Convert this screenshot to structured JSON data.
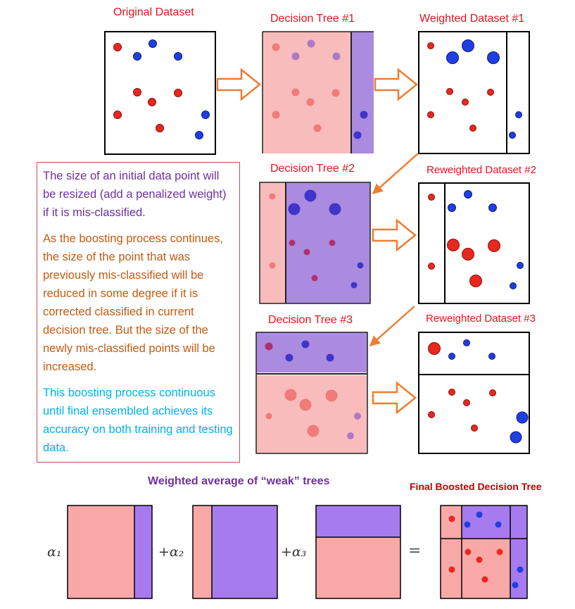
{
  "labels": {
    "original_dataset": "Original Dataset",
    "tree1": "Decision Tree #1",
    "weighted1": "Weighted Dataset #1",
    "tree2": "Decision Tree #2",
    "reweighted2": "Reweighted Dataset #2",
    "tree3": "Decision Tree #3",
    "reweighted3": "Reweighted Dataset #3",
    "weighted_average": "Weighted average of “weak” trees",
    "final_tree": "Final Boosted Decision Tree"
  },
  "textbox": {
    "para1": "The size of an initial data point will be resized (add a penalized weight) if it is mis-classified.",
    "para2": "As the boosting process continues, the size of the point that was previously mis-classified will be reduced in some degree if it is corrected classified in current decision tree. But the size of the newly mis-classified points will be increased.",
    "para3": "This boosting process continuous until final ensembled achieves its accuracy on both training and testing data."
  },
  "equation": {
    "alpha1": "α₁",
    "plus_alpha2": "+α₂",
    "plus_alpha3": "+α₃",
    "equals": "="
  },
  "colors": {
    "red_point": "#e8281e",
    "blue_point": "#1f3fe0",
    "pink_region": "#f9a8a8",
    "purple_region": "#a67bf0",
    "arrow_orange": "#ed7d31",
    "label_red": "#e0141e",
    "label_purple": "#7030a0",
    "label_darkred": "#c00000"
  }
}
